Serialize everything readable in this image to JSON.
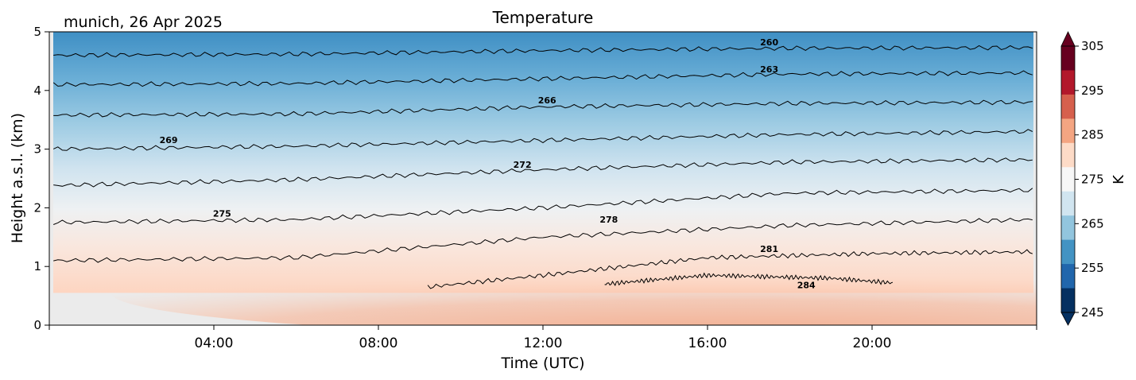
{
  "header": {
    "location_date": "munich, 26 Apr 2025",
    "title": "Temperature"
  },
  "colorbar": {
    "label": "K",
    "ticks": [
      245,
      255,
      265,
      275,
      285,
      295,
      305
    ],
    "min": 245,
    "max": 305,
    "colors": [
      "#053061",
      "#2166ac",
      "#4393c3",
      "#92c5de",
      "#d1e5f0",
      "#f7f7f7",
      "#fddbc7",
      "#f4a582",
      "#d6604d",
      "#b2182b",
      "#67001f"
    ]
  },
  "chart_data": {
    "type": "heatmap",
    "title": "Temperature",
    "xlabel": "Time (UTC)",
    "ylabel": "Height a.s.l. (km)",
    "x_tick_labels": [
      "04:00",
      "08:00",
      "12:00",
      "16:00",
      "20:00"
    ],
    "x_ticks_hours": [
      4,
      8,
      12,
      16,
      20
    ],
    "xlim_hours": [
      0,
      24
    ],
    "y_ticks": [
      0,
      1,
      2,
      3,
      4,
      5
    ],
    "ylim": [
      0,
      5
    ],
    "data_start_height_km": 0.55,
    "contour_levels": [
      260,
      263,
      266,
      269,
      272,
      275,
      278,
      281,
      284
    ],
    "contours": [
      {
        "level": 260,
        "hours": [
          0.1,
          6,
          12,
          18,
          23.9
        ],
        "heights_km": [
          4.6,
          4.62,
          4.68,
          4.72,
          4.73
        ]
      },
      {
        "level": 263,
        "hours": [
          0.1,
          6,
          12,
          18,
          23.9
        ],
        "heights_km": [
          4.1,
          4.12,
          4.2,
          4.28,
          4.3
        ]
      },
      {
        "level": 266,
        "hours": [
          0.1,
          6,
          12,
          18,
          23.9
        ],
        "heights_km": [
          3.58,
          3.6,
          3.72,
          3.78,
          3.8
        ]
      },
      {
        "level": 269,
        "hours": [
          0.1,
          6,
          12,
          18,
          23.9
        ],
        "heights_km": [
          3.0,
          3.05,
          3.15,
          3.25,
          3.3
        ]
      },
      {
        "level": 272,
        "hours": [
          0.1,
          6,
          12,
          18,
          23.9
        ],
        "heights_km": [
          2.38,
          2.48,
          2.65,
          2.78,
          2.82
        ]
      },
      {
        "level": 275,
        "hours": [
          0.1,
          6,
          12,
          18,
          23.9
        ],
        "heights_km": [
          1.75,
          1.8,
          2.0,
          2.25,
          2.3
        ]
      },
      {
        "level": 278,
        "hours": [
          0.1,
          6,
          12,
          18,
          23.9
        ],
        "heights_km": [
          1.1,
          1.15,
          1.5,
          1.7,
          1.8
        ]
      },
      {
        "level": 281,
        "hours": [
          9.2,
          12,
          16,
          20,
          23.9
        ],
        "heights_km": [
          0.65,
          0.85,
          1.15,
          1.22,
          1.25
        ]
      },
      {
        "level": 284,
        "hours": [
          13.5,
          16,
          19,
          20.5
        ],
        "heights_km": [
          0.7,
          0.85,
          0.8,
          0.72
        ]
      }
    ],
    "contour_label_positions": [
      {
        "level": 260,
        "hour": 17.5,
        "height_km": 4.77
      },
      {
        "level": 263,
        "hour": 17.5,
        "height_km": 4.31
      },
      {
        "level": 266,
        "hour": 12.1,
        "height_km": 3.78
      },
      {
        "level": 269,
        "hour": 2.9,
        "height_km": 3.1
      },
      {
        "level": 272,
        "hour": 11.5,
        "height_km": 2.68
      },
      {
        "level": 275,
        "hour": 4.2,
        "height_km": 1.85
      },
      {
        "level": 278,
        "hour": 13.6,
        "height_km": 1.75
      },
      {
        "level": 281,
        "hour": 17.5,
        "height_km": 1.25
      },
      {
        "level": 284,
        "hour": 18.4,
        "height_km": 0.63
      }
    ]
  }
}
